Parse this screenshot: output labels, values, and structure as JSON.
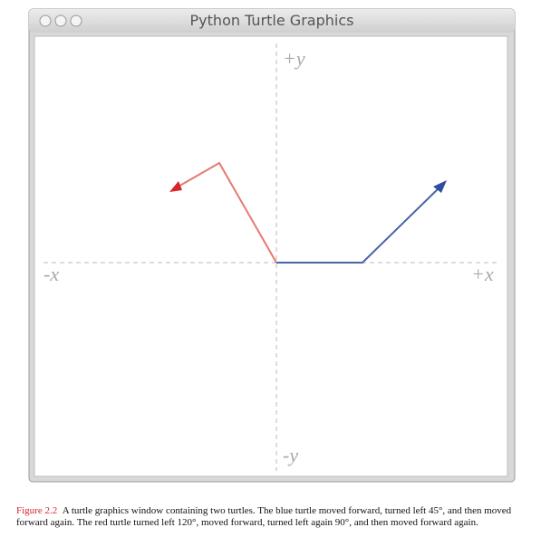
{
  "window": {
    "title": "Python Turtle Graphics"
  },
  "axes": {
    "y_positive": "+y",
    "y_negative": "-y",
    "x_negative": "-x",
    "x_positive": "+x"
  },
  "caption": {
    "label": "Figure 2.2",
    "text": "A turtle graphics window containing two turtles. The blue turtle moved forward, turned left 45°, and then moved forward again. The red turtle turned left 120°, moved forward, turned left again 90°, and then moved forward again."
  }
}
